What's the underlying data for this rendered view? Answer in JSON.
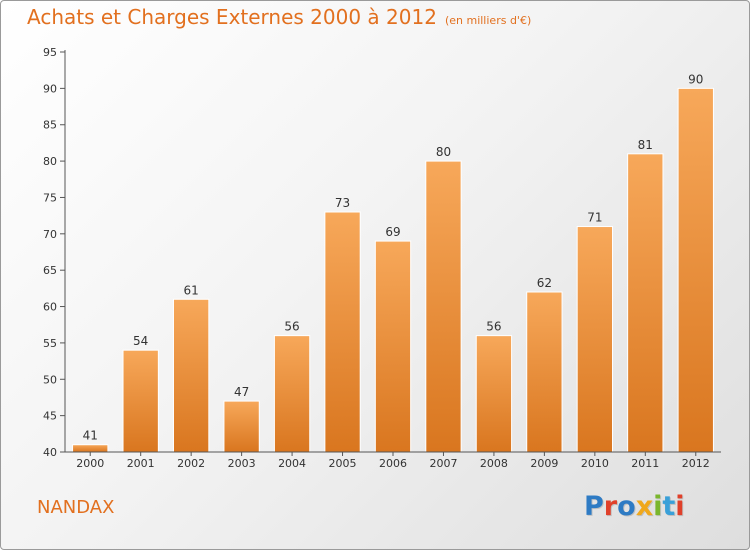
{
  "chart_data": {
    "type": "bar",
    "title": "Achats et Charges Externes 2000 à 2012",
    "unit_note": "(en milliers d'€)",
    "categories": [
      "2000",
      "2001",
      "2002",
      "2003",
      "2004",
      "2005",
      "2006",
      "2007",
      "2008",
      "2009",
      "2010",
      "2011",
      "2012"
    ],
    "values": [
      41,
      54,
      61,
      47,
      56,
      73,
      69,
      80,
      56,
      62,
      71,
      81,
      90
    ],
    "ylim": [
      40,
      95
    ],
    "yticks": [
      40,
      45,
      50,
      55,
      60,
      65,
      70,
      75,
      80,
      85,
      90,
      95
    ],
    "xlabel": "",
    "ylabel": "",
    "grid": false,
    "bar_color_light": "#f7a85a",
    "bar_color_dark": "#d9761f"
  },
  "footer": {
    "commune": "NANDAX",
    "brand": "Proxiti"
  },
  "colors": {
    "accent": "#e2701f",
    "brand_letters": [
      "#2e7bc4",
      "#e0402a",
      "#2e7bc4",
      "#f0a81c",
      "#7ab62d",
      "#3aa0d8",
      "#e0402a"
    ]
  }
}
